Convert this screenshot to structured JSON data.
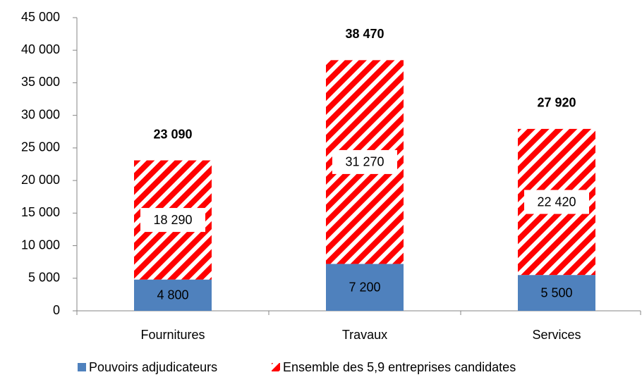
{
  "chart_data": {
    "type": "stacked_bar",
    "categories": [
      "Fournitures",
      "Travaux",
      "Services"
    ],
    "series": [
      {
        "name": "Pouvoirs adjudicateurs",
        "color": "#4f81bd",
        "values": [
          4800,
          7200,
          5500
        ],
        "value_labels": [
          "4 800",
          "7 200",
          "5 500"
        ]
      },
      {
        "name": "Ensemble des 5,9 entreprises candidates",
        "color": "#ff0000",
        "pattern": "diagonal-hatch",
        "values": [
          18290,
          31270,
          22420
        ],
        "value_labels": [
          "18 290",
          "31 270",
          "22 420"
        ]
      }
    ],
    "totals": [
      23090,
      38470,
      27920
    ],
    "total_labels": [
      "23 090",
      "38 470",
      "27 920"
    ],
    "ylim": [
      0,
      45000
    ],
    "yticks": [
      0,
      {
        "value": 5000,
        "label": "5 000"
      },
      {
        "value": 10000,
        "label": "10 000"
      },
      {
        "value": 15000,
        "label": "15 000"
      },
      {
        "value": 20000,
        "label": "20 000"
      },
      {
        "value": 25000,
        "label": "25 000"
      },
      {
        "value": 30000,
        "label": "30 000"
      },
      {
        "value": 35000,
        "label": "35 000"
      },
      {
        "value": 40000,
        "label": "40 000"
      },
      {
        "value": 45000,
        "label": "45 000"
      }
    ],
    "grid": false,
    "legend": "bottom"
  }
}
